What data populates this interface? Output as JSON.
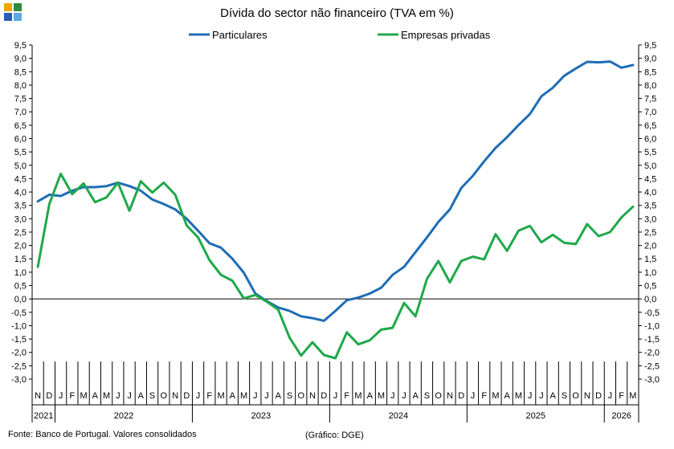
{
  "logo_colors": [
    "#f4a300",
    "#2e8b3e",
    "#2a5db0",
    "#5aa9e6"
  ],
  "source": "Fonte: Banco de Portugal. Valores consolidados",
  "credit": "(Gráfico: DGE)",
  "chart_data": {
    "type": "line",
    "title": "Dívida do sector não financeiro (TVA em %)",
    "xlabel": "",
    "ylabel": "",
    "ylim": [
      -3.0,
      9.5
    ],
    "ytick_step": 0.5,
    "grid": false,
    "legend_position": "top-center",
    "month_labels": [
      "N",
      "D",
      "J",
      "F",
      "M",
      "A",
      "M",
      "J",
      "J",
      "A",
      "S",
      "O",
      "N",
      "D",
      "J",
      "F",
      "M",
      "A",
      "M",
      "J",
      "J",
      "A",
      "S",
      "O",
      "N",
      "D",
      "J",
      "F",
      "M",
      "A",
      "M",
      "J",
      "J",
      "A",
      "S",
      "O",
      "N",
      "D",
      "J",
      "F",
      "M",
      "A",
      "M",
      "J",
      "J",
      "A",
      "S",
      "O",
      "N",
      "D",
      "J",
      "F",
      "M"
    ],
    "year_groups": [
      {
        "label": "2021",
        "count": 2
      },
      {
        "label": "2022",
        "count": 12
      },
      {
        "label": "2023",
        "count": 12
      },
      {
        "label": "2024",
        "count": 12
      },
      {
        "label": "2025",
        "count": 12
      },
      {
        "label": "2026",
        "count": 3
      }
    ],
    "series": [
      {
        "name": "Particulares",
        "color": "#1f6db5",
        "values": [
          3.65,
          3.9,
          3.85,
          4.05,
          4.18,
          4.18,
          4.22,
          4.35,
          4.22,
          4.05,
          3.72,
          3.55,
          3.35,
          3.0,
          2.55,
          2.08,
          1.92,
          1.5,
          0.98,
          0.2,
          -0.08,
          -0.32,
          -0.45,
          -0.65,
          -0.72,
          -0.82,
          -0.45,
          -0.05,
          0.05,
          0.2,
          0.42,
          0.9,
          1.2,
          1.75,
          2.3,
          2.88,
          3.35,
          4.15,
          4.6,
          5.15,
          5.65,
          6.05,
          6.5,
          6.92,
          7.58,
          7.9,
          8.35,
          8.62,
          8.87,
          8.85,
          8.88,
          8.65,
          8.75
        ]
      },
      {
        "name": "Empresas privadas",
        "color": "#1fa84a",
        "values": [
          1.2,
          3.55,
          4.68,
          3.92,
          4.32,
          3.62,
          3.8,
          4.35,
          3.3,
          4.4,
          3.98,
          4.35,
          3.9,
          2.75,
          2.3,
          1.45,
          0.9,
          0.68,
          0.02,
          0.15,
          -0.1,
          -0.4,
          -1.45,
          -2.12,
          -1.62,
          -2.1,
          -2.22,
          -1.25,
          -1.7,
          -1.55,
          -1.15,
          -1.08,
          -0.15,
          -0.65,
          0.75,
          1.42,
          0.62,
          1.42,
          1.58,
          1.48,
          2.42,
          1.8,
          2.55,
          2.73,
          2.12,
          2.4,
          2.1,
          2.05,
          2.8,
          2.35,
          2.5,
          3.05,
          3.45
        ]
      }
    ]
  }
}
